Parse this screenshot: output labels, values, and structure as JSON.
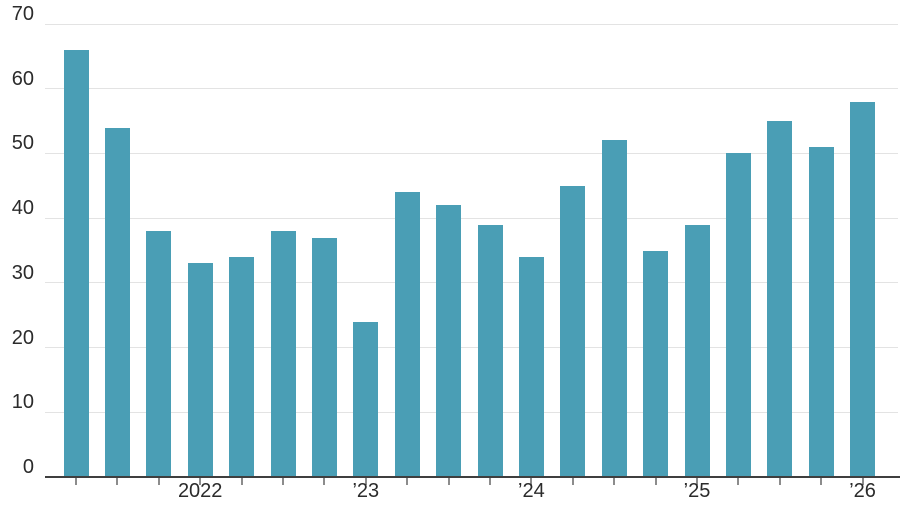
{
  "chart_data": {
    "type": "bar",
    "description_of_visible_content": "Single-series vertical bar chart, no title, no legend, white background",
    "values": [
      66,
      54,
      38,
      33,
      34,
      38,
      37,
      24,
      44,
      42,
      39,
      34,
      45,
      52,
      35,
      39,
      50,
      55,
      51,
      58
    ],
    "bar_count": 20,
    "y_axis": {
      "range": [
        0,
        70
      ],
      "tick_labels": [
        "0",
        "10",
        "20",
        "30",
        "40",
        "50",
        "60",
        "70"
      ],
      "gridlines": true,
      "label_position": "above gridline, right-aligned at left edge"
    },
    "x_axis": {
      "tick_mark_under_every_bar": true,
      "year_labels": [
        {
          "bar": 4,
          "label": "2022"
        },
        {
          "bar": 8,
          "label": "’23"
        },
        {
          "bar": 12,
          "label": "’24"
        },
        {
          "bar": 16,
          "label": "’25"
        },
        {
          "bar": 20,
          "label": "’26"
        }
      ]
    },
    "legend": false
  },
  "colors": {
    "background": "#ffffff",
    "bar": "#4a9eb5",
    "gridline": "#e3e3e3",
    "axis_line": "#3f3f3f",
    "tick_mark": "#8c8c8c",
    "label_text": "#2b2b2b"
  }
}
